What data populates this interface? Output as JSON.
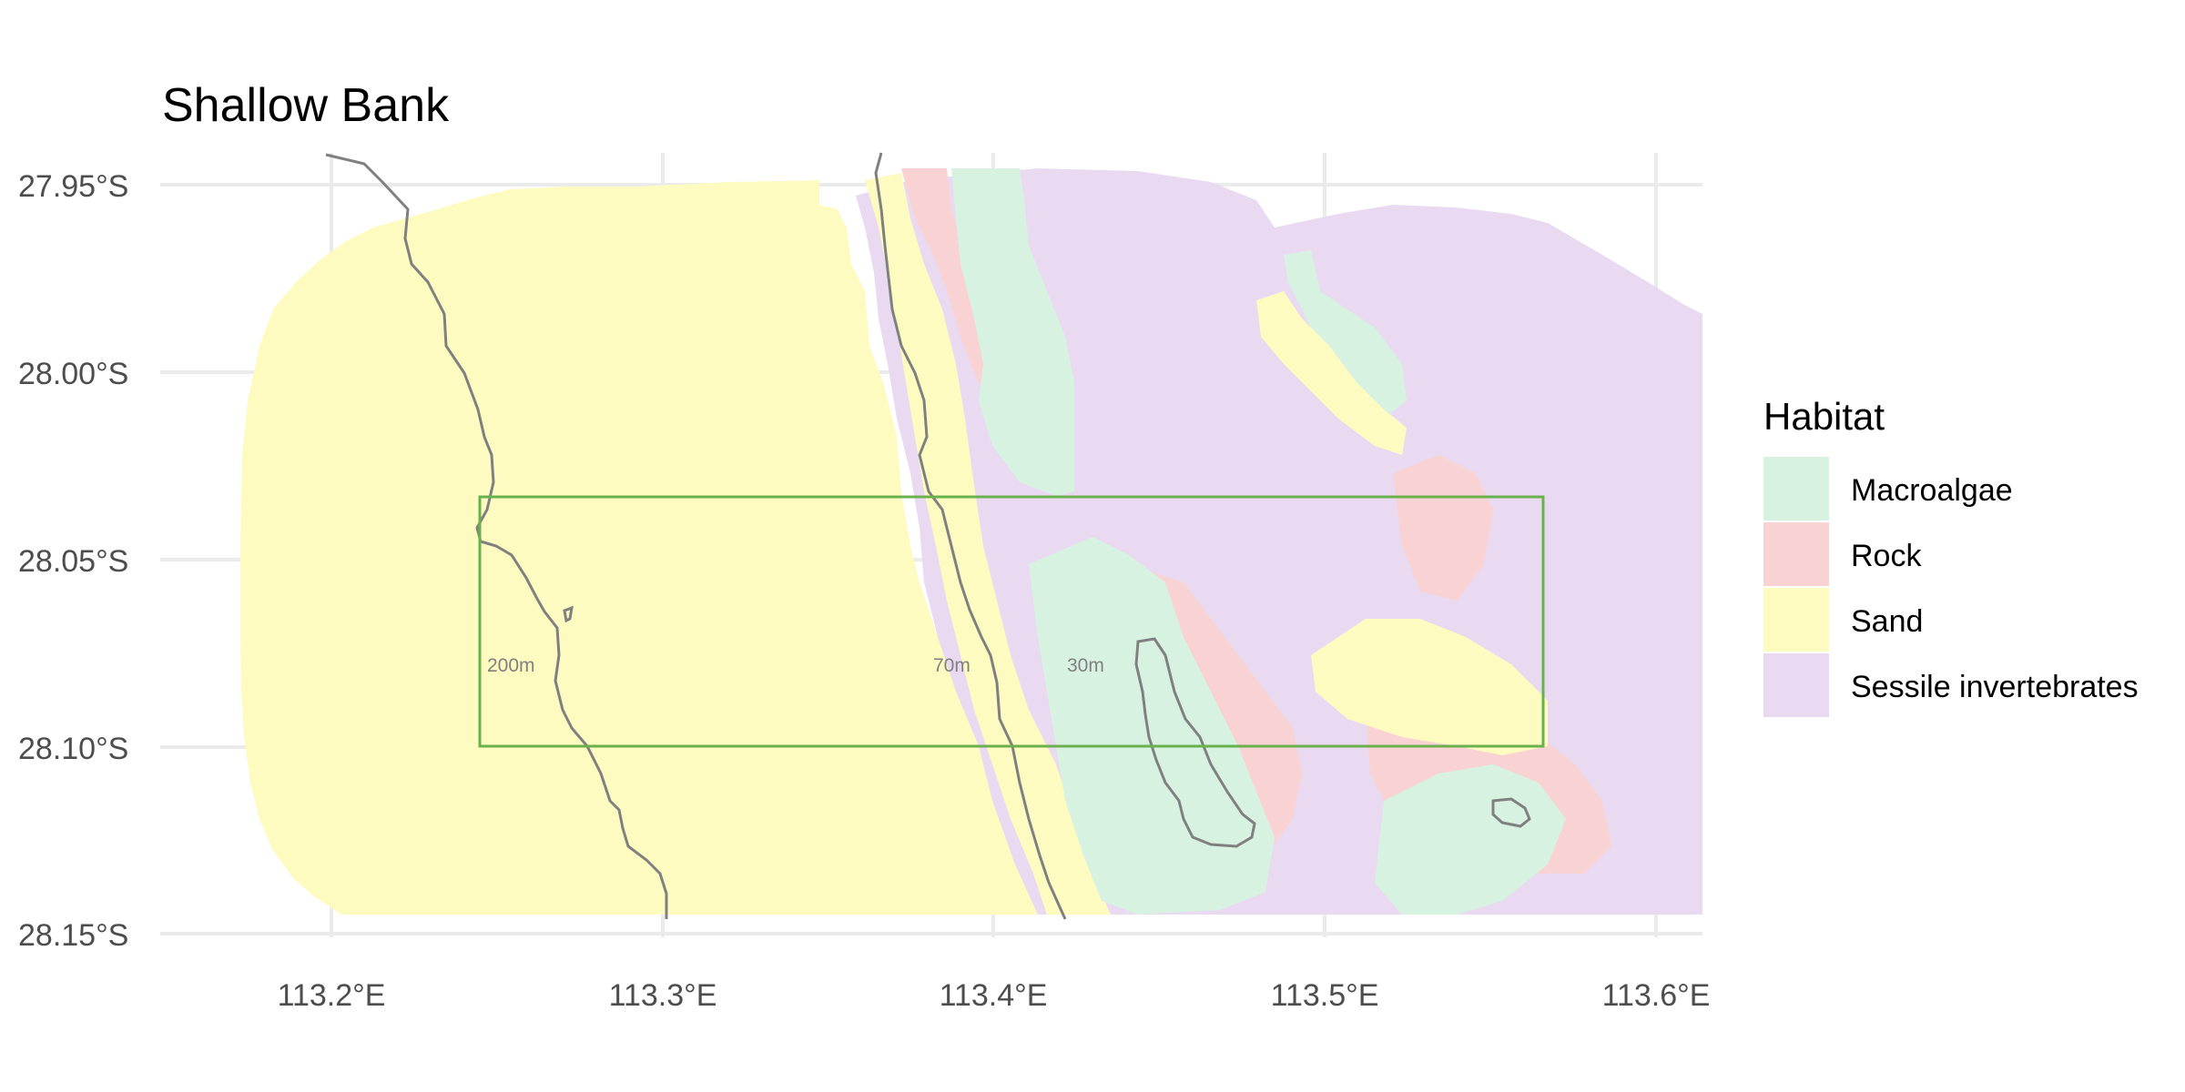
{
  "title": "Shallow Bank",
  "axes": {
    "x_ticks": [
      "113.2°E",
      "113.3°E",
      "113.4°E",
      "113.5°E",
      "113.6°E"
    ],
    "y_ticks": [
      "27.95°S",
      "28.00°S",
      "28.05°S",
      "28.10°S",
      "28.15°S"
    ]
  },
  "legend": {
    "title": "Habitat",
    "items": [
      {
        "label": "Macroalgae",
        "color": "#d7f2e0"
      },
      {
        "label": "Rock",
        "color": "#f9d2d4"
      },
      {
        "label": "Sand",
        "color": "#fefbc1"
      },
      {
        "label": "Sessile invertebrates",
        "color": "#e9daf2"
      }
    ]
  },
  "contours": [
    {
      "label": "200m",
      "depth_m": 200
    },
    {
      "label": "70m",
      "depth_m": 70
    },
    {
      "label": "30m",
      "depth_m": 30
    }
  ],
  "study_box": {
    "lon_min": 113.245,
    "lon_max": 113.567,
    "lat_min": -28.099,
    "lat_max": -28.033,
    "color": "#6ab04c"
  },
  "colors": {
    "grid": "#ebebeb",
    "contour": "#808080"
  }
}
